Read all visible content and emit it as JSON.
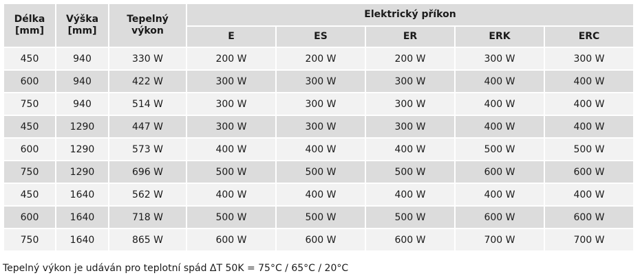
{
  "headers": {
    "length": [
      "Délka",
      "[mm]"
    ],
    "height": [
      "Výška",
      "[mm]"
    ],
    "heat_output": [
      "Tepelný",
      "výkon"
    ],
    "electric_power": "Elektrický příkon",
    "variants": [
      "E",
      "ES",
      "ER",
      "ERK",
      "ERC"
    ]
  },
  "rows": [
    {
      "length": "450",
      "height": "940",
      "output": "330 W",
      "power": [
        "200 W",
        "200 W",
        "200 W",
        "300 W",
        "300 W"
      ]
    },
    {
      "length": "600",
      "height": "940",
      "output": "422 W",
      "power": [
        "300 W",
        "300 W",
        "300 W",
        "400 W",
        "400 W"
      ]
    },
    {
      "length": "750",
      "height": "940",
      "output": "514 W",
      "power": [
        "300 W",
        "300 W",
        "300 W",
        "400 W",
        "400 W"
      ]
    },
    {
      "length": "450",
      "height": "1290",
      "output": "447 W",
      "power": [
        "300 W",
        "300 W",
        "300 W",
        "400 W",
        "400 W"
      ]
    },
    {
      "length": "600",
      "height": "1290",
      "output": "573 W",
      "power": [
        "400 W",
        "400 W",
        "400 W",
        "500 W",
        "500 W"
      ]
    },
    {
      "length": "750",
      "height": "1290",
      "output": "696 W",
      "power": [
        "500 W",
        "500 W",
        "500 W",
        "600 W",
        "600 W"
      ]
    },
    {
      "length": "450",
      "height": "1640",
      "output": "562 W",
      "power": [
        "400 W",
        "400 W",
        "400 W",
        "400 W",
        "400 W"
      ]
    },
    {
      "length": "600",
      "height": "1640",
      "output": "718 W",
      "power": [
        "500 W",
        "500 W",
        "500 W",
        "600 W",
        "600 W"
      ]
    },
    {
      "length": "750",
      "height": "1640",
      "output": "865 W",
      "power": [
        "600 W",
        "600 W",
        "600 W",
        "700 W",
        "700 W"
      ]
    }
  ],
  "note": "Tepelný výkon je udáván pro teplotní spád ΔT 50K = 75°C / 65°C / 20°C"
}
